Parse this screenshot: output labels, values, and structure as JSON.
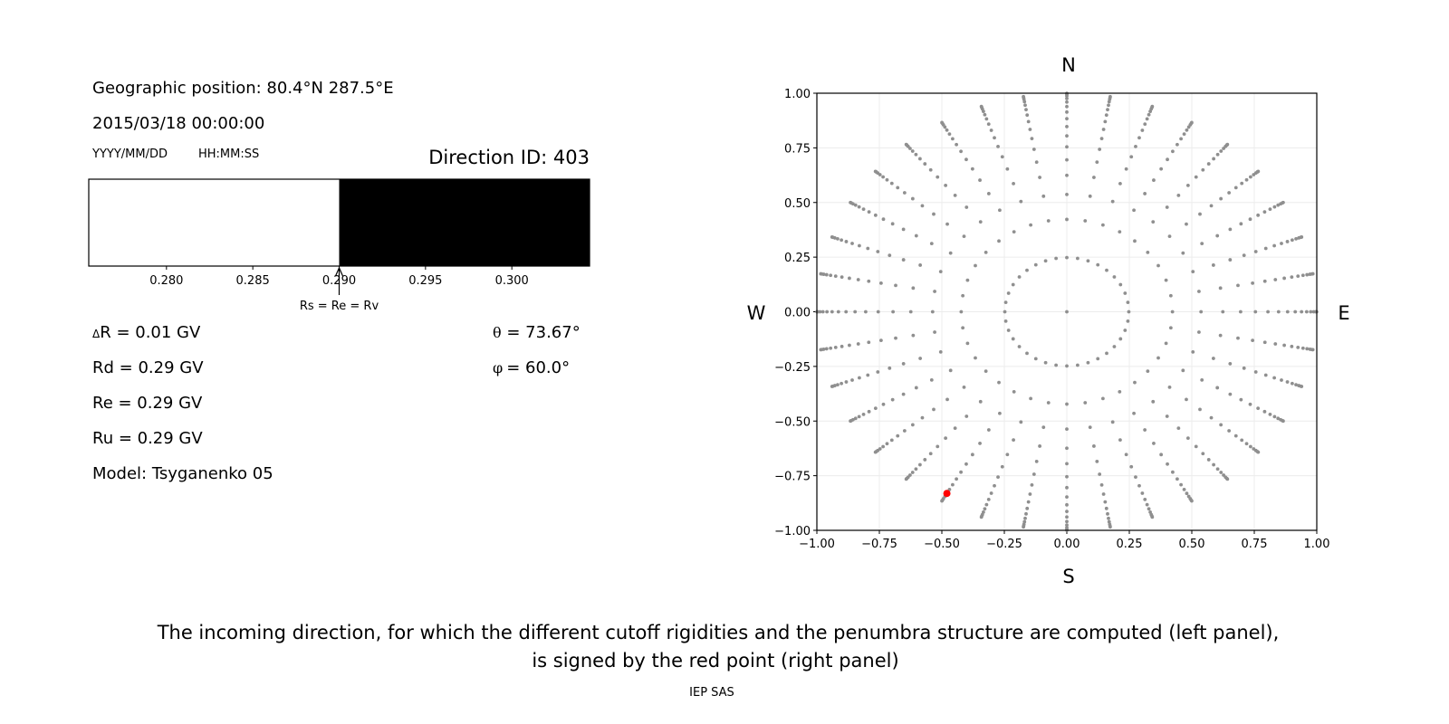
{
  "left_panel": {
    "geo_position": "Geographic position: 80.4°N 287.5°E",
    "datetime": "2015/03/18 00:00:00",
    "date_format": "YYYY/MM/DD",
    "time_format": "HH:MM:SS",
    "direction_id": "Direction ID: 403",
    "delta_r_symbol": "Δ",
    "delta_r": "R = 0.01 GV",
    "rd": "Rd = 0.29 GV",
    "re": "Re = 0.29 GV",
    "ru": "Ru = 0.29 GV",
    "model": "Model: Tsyganenko 05",
    "theta_symbol": "θ",
    "theta": " = 73.67°",
    "phi_symbol": "φ",
    "phi": "= 60.0°"
  },
  "caption": {
    "line1": "The incoming direction, for which the different cutoff rigidities and the penumbra structure are computed (left panel),",
    "line2": "is signed by the red point (right panel)",
    "credit": "IEP SAS"
  },
  "chart_data": [
    {
      "type": "bar",
      "description_role": "penumbra",
      "xlim": [
        0.2755,
        0.3045
      ],
      "xticks": [
        "0.280",
        "0.285",
        "0.290",
        "0.295",
        "0.300"
      ],
      "xtick_values": [
        0.28,
        0.285,
        0.29,
        0.295,
        0.3
      ],
      "segments": [
        {
          "from": 0.2755,
          "to": 0.29,
          "color": "#ffffff",
          "state": "forbidden"
        },
        {
          "from": 0.29,
          "to": 0.3045,
          "color": "#000000",
          "state": "allowed"
        }
      ],
      "annotation": {
        "text": "Rs = Re = Rv",
        "x": 0.29
      }
    },
    {
      "type": "scatter",
      "xlim": [
        -1,
        1
      ],
      "ylim": [
        -1,
        1
      ],
      "grid": true,
      "xticks": [
        "−1.00",
        "−0.75",
        "−0.50",
        "−0.25",
        "0.00",
        "0.25",
        "0.50",
        "0.75",
        "1.00"
      ],
      "yticks": [
        "1.00",
        "0.75",
        "0.50",
        "0.25",
        "0.00",
        "−0.25",
        "−0.50",
        "−0.75",
        "−1.00"
      ],
      "tick_values": [
        -1,
        -0.75,
        -0.5,
        -0.25,
        0,
        0.25,
        0.5,
        0.75,
        1
      ],
      "compass": {
        "north": "N",
        "south": "S",
        "west": "W",
        "east": "E"
      },
      "point_color": "#8f8f8f",
      "highlight_color": "#ff0000",
      "zenith_angles_deg": [
        14.36,
        25.0,
        32.47,
        38.62,
        44.05,
        48.99,
        53.58,
        57.91,
        62.05,
        66.03,
        69.89,
        73.67,
        77.36,
        81.01,
        84.62,
        88.21
      ],
      "azimuths_deg": [
        0,
        10,
        20,
        30,
        40,
        50,
        60,
        70,
        80,
        90,
        100,
        110,
        120,
        130,
        140,
        150,
        160,
        170,
        180,
        190,
        200,
        210,
        220,
        230,
        240,
        250,
        260,
        270,
        280,
        290,
        300,
        310,
        320,
        330,
        340,
        350
      ],
      "center_point": true,
      "highlight": {
        "zenith_deg": 73.67,
        "azimuth_deg": 60.0
      }
    }
  ]
}
